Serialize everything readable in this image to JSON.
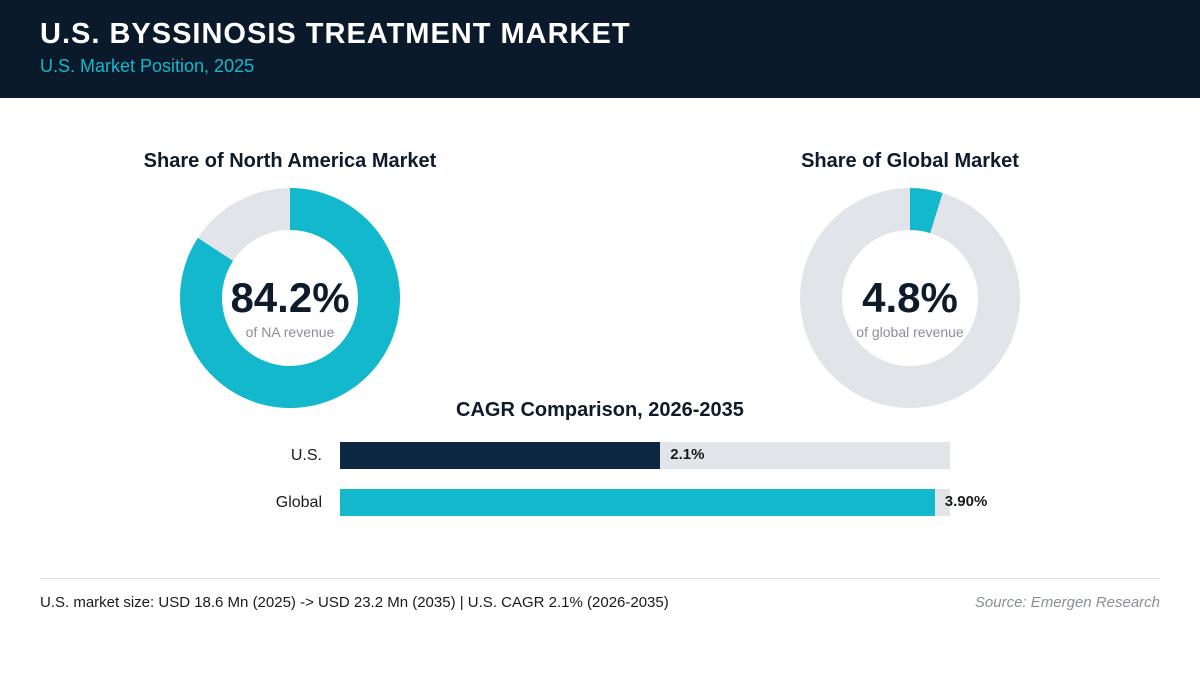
{
  "header": {
    "title": "U.S. BYSSINOSIS TREATMENT MARKET",
    "subtitle": "U.S. Market Position, 2025"
  },
  "colors": {
    "header_bg": "#0a1a2a",
    "accent": "#14b8cc",
    "navy": "#0c2840",
    "track": "#e1e5e9"
  },
  "chart_data": [
    {
      "type": "pie",
      "title": "Share of North America Market",
      "value": 84.2,
      "value_label": "84.2%",
      "caption": "of NA revenue",
      "remainder": 15.8
    },
    {
      "type": "pie",
      "title": "Share of Global Market",
      "value": 4.8,
      "value_label": "4.8%",
      "caption": "of global revenue",
      "remainder": 95.2
    },
    {
      "type": "bar",
      "title": "CAGR Comparison, 2026-2035",
      "orientation": "horizontal",
      "categories": [
        "U.S.",
        "Global"
      ],
      "values": [
        2.1,
        3.9
      ],
      "value_labels": [
        "2.1%",
        "3.90%"
      ],
      "xlim": [
        0,
        4.0
      ]
    }
  ],
  "footer": {
    "note": "U.S. market size: USD 18.6 Mn (2025) -> USD 23.2 Mn (2035)  |  U.S. CAGR 2.1% (2026-2035)",
    "source": "Source: Emergen Research"
  }
}
